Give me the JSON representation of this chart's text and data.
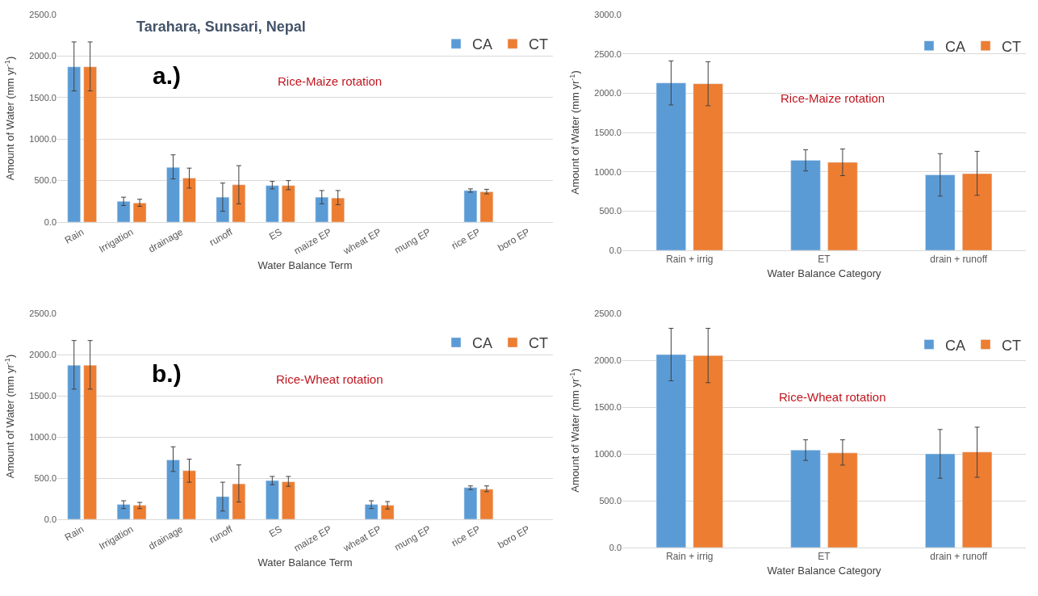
{
  "chart_data": [
    {
      "type": "bar",
      "title": "Tarahara, Sunsari, Nepal",
      "xlabel": "Water Balance Term",
      "ylabel": "Amount of Water (mm yr$^{-1}$)",
      "annotations": [
        "a.)",
        "Rice-Maize rotation"
      ],
      "categories": [
        "Rain",
        "Irrigation",
        "drainage",
        "runoff",
        "ES",
        "maize EP",
        "wheat EP",
        "mung EP",
        "rice EP",
        "boro EP"
      ],
      "series": [
        {
          "name": "CA",
          "color": "#5b9bd5",
          "values": [
            1870,
            250,
            660,
            300,
            440,
            300,
            null,
            null,
            380,
            null
          ],
          "errors": [
            [
              1580,
              2170
            ],
            [
              200,
              300
            ],
            [
              520,
              810
            ],
            [
              130,
              470
            ],
            [
              400,
              490
            ],
            [
              220,
              380
            ],
            null,
            null,
            [
              360,
              400
            ],
            null
          ]
        },
        {
          "name": "CT",
          "color": "#ed7d31",
          "values": [
            1870,
            230,
            530,
            450,
            440,
            290,
            null,
            null,
            365,
            null
          ],
          "errors": [
            [
              1580,
              2170
            ],
            [
              190,
              275
            ],
            [
              410,
              650
            ],
            [
              220,
              680
            ],
            [
              390,
              500
            ],
            [
              210,
              380
            ],
            null,
            null,
            [
              340,
              395
            ],
            null
          ]
        }
      ],
      "ylim": [
        0,
        2500
      ],
      "yticks": [
        {
          "value": 0,
          "label": "0.0"
        },
        {
          "value": 500,
          "label": "500.0"
        },
        {
          "value": 1000,
          "label": "1000.0"
        },
        {
          "value": 1500,
          "label": "1500.0"
        },
        {
          "value": 2000,
          "label": "2000.0"
        },
        {
          "value": 2500,
          "label": "2500.0"
        }
      ],
      "grid": "y",
      "legend": "top right"
    },
    {
      "type": "bar",
      "xlabel": "Water Balance Category",
      "ylabel": "Amount of Water (mm yr$^{-1}$)",
      "annotations": [
        "Rice-Maize rotation"
      ],
      "categories": [
        "Rain + irrig",
        "ET",
        "drain + runoff"
      ],
      "series": [
        {
          "name": "CA",
          "color": "#5b9bd5",
          "values": [
            2130,
            1145,
            960
          ],
          "errors": [
            [
              1850,
              2410
            ],
            [
              1010,
              1280
            ],
            [
              690,
              1230
            ]
          ]
        },
        {
          "name": "CT",
          "color": "#ed7d31",
          "values": [
            2120,
            1120,
            975
          ],
          "errors": [
            [
              1840,
              2400
            ],
            [
              950,
              1290
            ],
            [
              700,
              1260
            ]
          ]
        }
      ],
      "ylim": [
        0,
        3000
      ],
      "yticks": [
        {
          "value": 0,
          "label": "0.0"
        },
        {
          "value": 500,
          "label": "500.0"
        },
        {
          "value": 1000,
          "label": "1000.0"
        },
        {
          "value": 1500,
          "label": "1500.0"
        },
        {
          "value": 2000,
          "label": "2000.0"
        },
        {
          "value": 2500,
          "label": "2500.0"
        },
        {
          "value": 3000,
          "label": "3000.0"
        }
      ],
      "grid": "y",
      "legend": "top right"
    },
    {
      "type": "bar",
      "xlabel": "Water Balance Term",
      "ylabel": "Amount of Water (mm yr$^{-1}$)",
      "annotations": [
        "b.)",
        "Rice-Wheat rotation"
      ],
      "categories": [
        "Rain",
        "Irrigation",
        "drainage",
        "runoff",
        "ES",
        "maize EP",
        "wheat EP",
        "mung EP",
        "rice EP",
        "boro EP"
      ],
      "series": [
        {
          "name": "CA",
          "color": "#5b9bd5",
          "values": [
            1870,
            180,
            720,
            275,
            470,
            null,
            180,
            null,
            385,
            null
          ],
          "errors": [
            [
              1580,
              2170
            ],
            [
              130,
              225
            ],
            [
              580,
              880
            ],
            [
              100,
              450
            ],
            [
              420,
              520
            ],
            null,
            [
              130,
              225
            ],
            null,
            [
              360,
              405
            ],
            null
          ]
        },
        {
          "name": "CT",
          "color": "#ed7d31",
          "values": [
            1870,
            170,
            590,
            430,
            455,
            null,
            170,
            null,
            365,
            null
          ],
          "errors": [
            [
              1580,
              2170
            ],
            [
              130,
              205
            ],
            [
              450,
              730
            ],
            [
              210,
              660
            ],
            [
              400,
              520
            ],
            null,
            [
              125,
              215
            ],
            null,
            [
              335,
              405
            ],
            null
          ]
        }
      ],
      "ylim": [
        0,
        2500
      ],
      "yticks": [
        {
          "value": 0,
          "label": "0.0"
        },
        {
          "value": 500,
          "label": "500.0"
        },
        {
          "value": 1000,
          "label": "1000.0"
        },
        {
          "value": 1500,
          "label": "1500.0"
        },
        {
          "value": 2000,
          "label": "2000.0"
        },
        {
          "value": 2500,
          "label": "2500.0"
        }
      ],
      "grid": "y",
      "legend": "top right"
    },
    {
      "type": "bar",
      "xlabel": "Water Balance Category",
      "ylabel": "Amount of Water (mm yr$^{-1}$)",
      "annotations": [
        "Rice-Wheat rotation"
      ],
      "categories": [
        "Rain + irrig",
        "ET",
        "drain + runoff"
      ],
      "series": [
        {
          "name": "CA",
          "color": "#5b9bd5",
          "values": [
            2060,
            1040,
            1000
          ],
          "errors": [
            [
              1780,
              2340
            ],
            [
              930,
              1150
            ],
            [
              740,
              1260
            ]
          ]
        },
        {
          "name": "CT",
          "color": "#ed7d31",
          "values": [
            2050,
            1010,
            1020
          ],
          "errors": [
            [
              1760,
              2340
            ],
            [
              880,
              1150
            ],
            [
              750,
              1285
            ]
          ]
        }
      ],
      "ylim": [
        0,
        2500
      ],
      "yticks": [
        {
          "value": 0,
          "label": "0.0"
        },
        {
          "value": 500,
          "label": "500.0"
        },
        {
          "value": 1000,
          "label": "1000.0"
        },
        {
          "value": 1500,
          "label": "1500.0"
        },
        {
          "value": 2000,
          "label": "2000.0"
        },
        {
          "value": 2500,
          "label": "2500.0"
        }
      ],
      "grid": "y",
      "legend": "top right"
    }
  ]
}
